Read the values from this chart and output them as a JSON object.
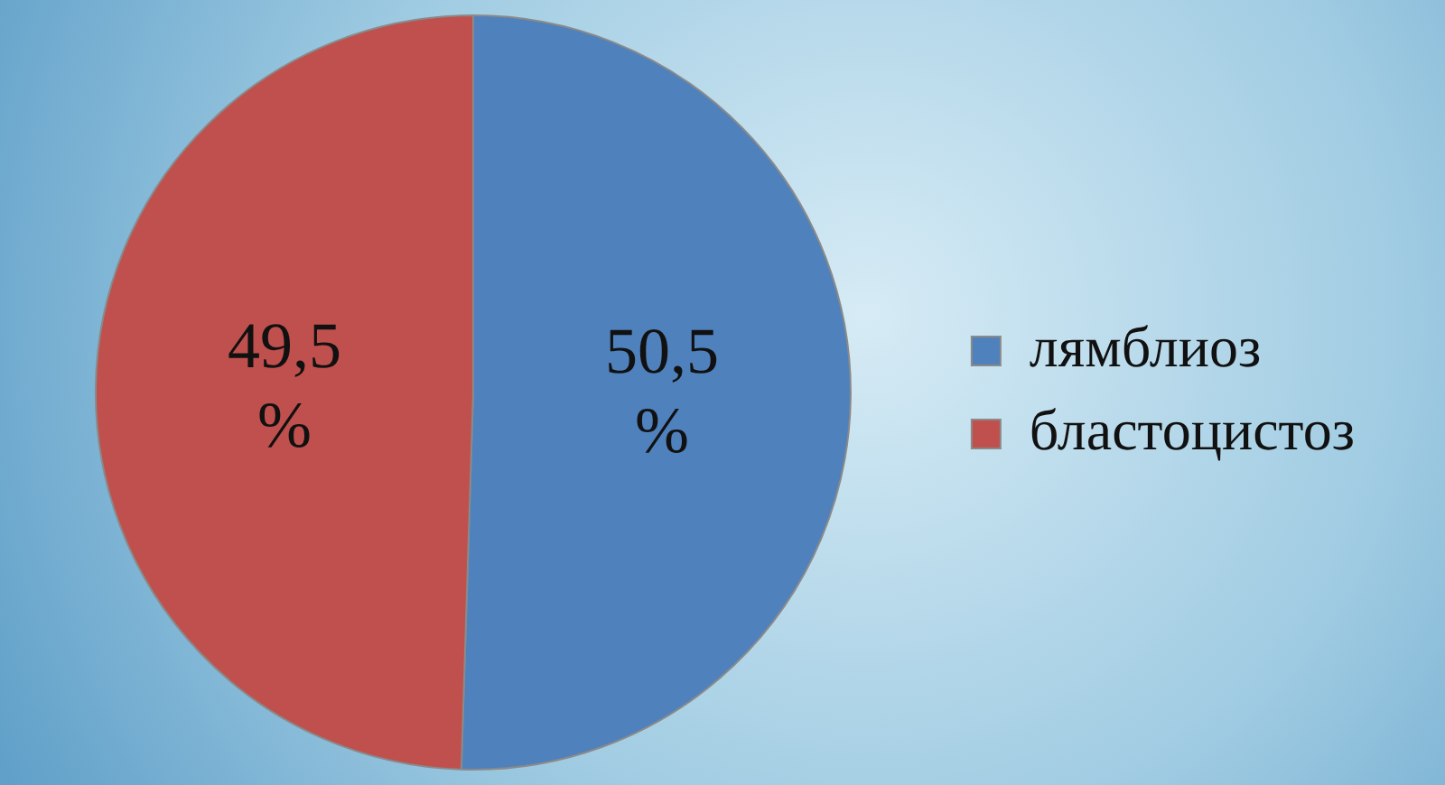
{
  "chart_data": {
    "type": "pie",
    "categories": [
      "лямблиоз",
      "бластоцистоз"
    ],
    "values": [
      50.5,
      49.5
    ],
    "colors": [
      "#4f81bd",
      "#c0504d"
    ],
    "value_labels": [
      "50,5 %",
      "49,5 %"
    ],
    "legend": "right"
  }
}
